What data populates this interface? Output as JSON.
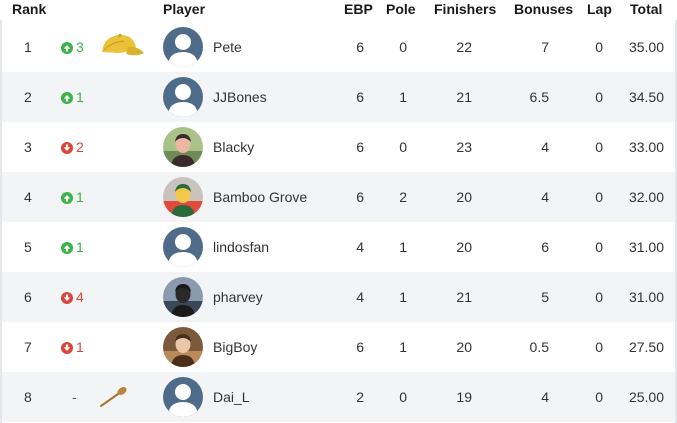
{
  "headers": {
    "rank": "Rank",
    "player": "Player",
    "ebp": "EBP",
    "pole": "Pole",
    "finishers": "Finishers",
    "bonuses": "Bonuses",
    "lap": "Lap",
    "total": "Total"
  },
  "rows": [
    {
      "rank": "1",
      "direction": "up",
      "move": "3",
      "badge": "cap",
      "avatar": "default",
      "player": "Pete",
      "ebp": "6",
      "pole": "0",
      "finishers": "22",
      "bonuses": "7",
      "lap": "0",
      "total": "35.00"
    },
    {
      "rank": "2",
      "direction": "up",
      "move": "1",
      "badge": "",
      "avatar": "default",
      "player": "JJBones",
      "ebp": "6",
      "pole": "1",
      "finishers": "21",
      "bonuses": "6.5",
      "lap": "0",
      "total": "34.50"
    },
    {
      "rank": "3",
      "direction": "down",
      "move": "2",
      "badge": "",
      "avatar": "photo-blacky",
      "player": "Blacky",
      "ebp": "6",
      "pole": "0",
      "finishers": "23",
      "bonuses": "4",
      "lap": "0",
      "total": "33.00"
    },
    {
      "rank": "4",
      "direction": "up",
      "move": "1",
      "badge": "",
      "avatar": "photo-bamboo",
      "player": "Bamboo Grove",
      "ebp": "6",
      "pole": "2",
      "finishers": "20",
      "bonuses": "4",
      "lap": "0",
      "total": "32.00"
    },
    {
      "rank": "5",
      "direction": "up",
      "move": "1",
      "badge": "",
      "avatar": "default",
      "player": "lindosfan",
      "ebp": "4",
      "pole": "1",
      "finishers": "20",
      "bonuses": "6",
      "lap": "0",
      "total": "31.00"
    },
    {
      "rank": "6",
      "direction": "down",
      "move": "4",
      "badge": "",
      "avatar": "photo-pharvey",
      "player": "pharvey",
      "ebp": "4",
      "pole": "1",
      "finishers": "21",
      "bonuses": "5",
      "lap": "0",
      "total": "31.00"
    },
    {
      "rank": "7",
      "direction": "down",
      "move": "1",
      "badge": "",
      "avatar": "photo-bigboy",
      "player": "BigBoy",
      "ebp": "6",
      "pole": "1",
      "finishers": "20",
      "bonuses": "0.5",
      "lap": "0",
      "total": "27.50"
    },
    {
      "rank": "8",
      "direction": "none",
      "move": "-",
      "badge": "spoon",
      "avatar": "default",
      "player": "Dai_L",
      "ebp": "2",
      "pole": "0",
      "finishers": "19",
      "bonuses": "4",
      "lap": "0",
      "total": "25.00"
    }
  ],
  "colors": {
    "up": "#3bb34a",
    "down": "#d9473a",
    "avatar_bg": "#4f6b8a",
    "stripe": "#f3f4f6"
  },
  "icons": {
    "up": "arrow-circle-up-icon",
    "down": "arrow-circle-down-icon",
    "cap": "yellow-cap-icon",
    "spoon": "wooden-spoon-icon",
    "default_avatar": "default-user-avatar-icon"
  }
}
